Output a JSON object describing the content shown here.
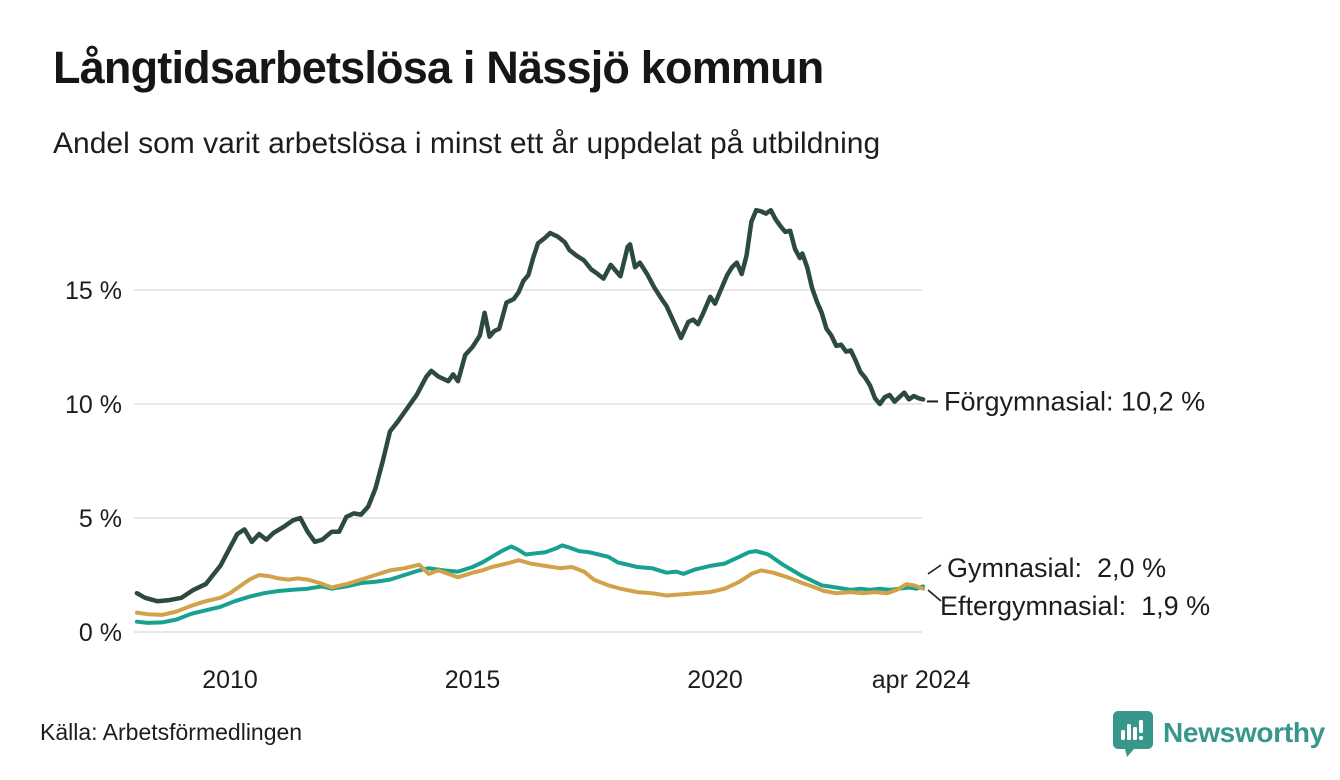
{
  "header": {
    "title": "Långtidsarbetslösa i Nässjö kommun",
    "subtitle": "Andel som varit arbetslösa i minst ett år uppdelat på utbildning"
  },
  "footer": {
    "source": "Källa: Arbetsförmedlingen",
    "brand": "Newsworthy",
    "brand_color": "#37978a"
  },
  "chart_data": {
    "type": "line",
    "title": "Långtidsarbetslösa i Nässjö kommun",
    "subtitle": "Andel som varit arbetslösa i minst ett år uppdelat på utbildning",
    "unit": "%",
    "grid": true,
    "gridline_color": "#e8e8e6",
    "text_color": "#1d1d1b",
    "legend_position": "end-of-line-labels",
    "x_axis": {
      "range": [
        2008.08,
        2024.29
      ],
      "ticks": [
        {
          "label": "2010",
          "year": 2010
        },
        {
          "label": "2015",
          "year": 2015
        },
        {
          "label": "2020",
          "year": 2020
        },
        {
          "label": "apr 2024",
          "year": 2024.25
        }
      ]
    },
    "y_axis": {
      "range": [
        0,
        19
      ],
      "ticks": [
        {
          "label": "0 %",
          "value": 0
        },
        {
          "label": "5 %",
          "value": 5
        },
        {
          "label": "10 %",
          "value": 10
        },
        {
          "label": "15 %",
          "value": 15
        }
      ]
    },
    "series": [
      {
        "name": "Förgymnasial",
        "end_label": "Förgymnasial: 10,2 %",
        "end_value": "10,2 %",
        "color": "#2c4a40",
        "stroke_width": 4.5,
        "points": [
          [
            2008.08,
            1.7
          ],
          [
            2008.25,
            1.5
          ],
          [
            2008.5,
            1.35
          ],
          [
            2008.75,
            1.4
          ],
          [
            2009.0,
            1.5
          ],
          [
            2009.25,
            1.85
          ],
          [
            2009.5,
            2.1
          ],
          [
            2009.65,
            2.5
          ],
          [
            2009.8,
            2.9
          ],
          [
            2010.0,
            3.7
          ],
          [
            2010.15,
            4.3
          ],
          [
            2010.3,
            4.5
          ],
          [
            2010.45,
            3.95
          ],
          [
            2010.6,
            4.3
          ],
          [
            2010.75,
            4.05
          ],
          [
            2010.9,
            4.35
          ],
          [
            2011.1,
            4.6
          ],
          [
            2011.3,
            4.9
          ],
          [
            2011.45,
            5.0
          ],
          [
            2011.6,
            4.4
          ],
          [
            2011.75,
            3.95
          ],
          [
            2011.9,
            4.05
          ],
          [
            2012.1,
            4.4
          ],
          [
            2012.25,
            4.4
          ],
          [
            2012.4,
            5.05
          ],
          [
            2012.55,
            5.2
          ],
          [
            2012.7,
            5.15
          ],
          [
            2012.85,
            5.5
          ],
          [
            2013.0,
            6.3
          ],
          [
            2013.15,
            7.5
          ],
          [
            2013.3,
            8.8
          ],
          [
            2013.45,
            9.2
          ],
          [
            2013.65,
            9.8
          ],
          [
            2013.85,
            10.4
          ],
          [
            2014.05,
            11.2
          ],
          [
            2014.15,
            11.45
          ],
          [
            2014.3,
            11.2
          ],
          [
            2014.5,
            11.0
          ],
          [
            2014.6,
            11.3
          ],
          [
            2014.7,
            11.0
          ],
          [
            2014.85,
            12.15
          ],
          [
            2015.0,
            12.5
          ],
          [
            2015.15,
            13.0
          ],
          [
            2015.25,
            14.0
          ],
          [
            2015.35,
            12.95
          ],
          [
            2015.45,
            13.2
          ],
          [
            2015.55,
            13.3
          ],
          [
            2015.7,
            14.45
          ],
          [
            2015.85,
            14.6
          ],
          [
            2015.95,
            14.9
          ],
          [
            2016.05,
            15.4
          ],
          [
            2016.15,
            15.65
          ],
          [
            2016.25,
            16.4
          ],
          [
            2016.35,
            17.05
          ],
          [
            2016.5,
            17.3
          ],
          [
            2016.6,
            17.5
          ],
          [
            2016.75,
            17.35
          ],
          [
            2016.9,
            17.1
          ],
          [
            2017.0,
            16.75
          ],
          [
            2017.15,
            16.5
          ],
          [
            2017.3,
            16.3
          ],
          [
            2017.45,
            15.9
          ],
          [
            2017.55,
            15.75
          ],
          [
            2017.7,
            15.5
          ],
          [
            2017.85,
            16.1
          ],
          [
            2017.95,
            15.85
          ],
          [
            2018.05,
            15.6
          ],
          [
            2018.2,
            16.9
          ],
          [
            2018.25,
            17.0
          ],
          [
            2018.35,
            16.0
          ],
          [
            2018.45,
            16.2
          ],
          [
            2018.6,
            15.7
          ],
          [
            2018.75,
            15.1
          ],
          [
            2018.9,
            14.6
          ],
          [
            2019.0,
            14.3
          ],
          [
            2019.15,
            13.6
          ],
          [
            2019.3,
            12.9
          ],
          [
            2019.45,
            13.6
          ],
          [
            2019.55,
            13.7
          ],
          [
            2019.65,
            13.5
          ],
          [
            2019.75,
            13.95
          ],
          [
            2019.9,
            14.7
          ],
          [
            2020.0,
            14.4
          ],
          [
            2020.1,
            14.9
          ],
          [
            2020.25,
            15.65
          ],
          [
            2020.35,
            16.0
          ],
          [
            2020.45,
            16.2
          ],
          [
            2020.55,
            15.7
          ],
          [
            2020.65,
            16.5
          ],
          [
            2020.75,
            18.0
          ],
          [
            2020.85,
            18.5
          ],
          [
            2020.95,
            18.45
          ],
          [
            2021.05,
            18.35
          ],
          [
            2021.15,
            18.5
          ],
          [
            2021.25,
            18.1
          ],
          [
            2021.35,
            17.8
          ],
          [
            2021.45,
            17.55
          ],
          [
            2021.55,
            17.6
          ],
          [
            2021.65,
            16.8
          ],
          [
            2021.75,
            16.4
          ],
          [
            2021.8,
            16.6
          ],
          [
            2021.9,
            16.0
          ],
          [
            2022.0,
            15.1
          ],
          [
            2022.1,
            14.5
          ],
          [
            2022.2,
            14.0
          ],
          [
            2022.3,
            13.3
          ],
          [
            2022.4,
            13.0
          ],
          [
            2022.5,
            12.55
          ],
          [
            2022.6,
            12.6
          ],
          [
            2022.7,
            12.3
          ],
          [
            2022.8,
            12.35
          ],
          [
            2022.9,
            11.9
          ],
          [
            2023.0,
            11.4
          ],
          [
            2023.1,
            11.15
          ],
          [
            2023.2,
            10.8
          ],
          [
            2023.3,
            10.25
          ],
          [
            2023.4,
            10.0
          ],
          [
            2023.5,
            10.3
          ],
          [
            2023.6,
            10.4
          ],
          [
            2023.7,
            10.1
          ],
          [
            2023.8,
            10.3
          ],
          [
            2023.9,
            10.5
          ],
          [
            2024.0,
            10.2
          ],
          [
            2024.1,
            10.35
          ],
          [
            2024.2,
            10.25
          ],
          [
            2024.29,
            10.2
          ]
        ]
      },
      {
        "name": "Gymnasial",
        "end_label": "Gymnasial:  2,0 %",
        "end_value": "2,0 %",
        "color": "#18a091",
        "stroke_width": 4,
        "points": [
          [
            2008.08,
            0.45
          ],
          [
            2008.3,
            0.4
          ],
          [
            2008.6,
            0.42
          ],
          [
            2008.9,
            0.55
          ],
          [
            2009.2,
            0.8
          ],
          [
            2009.5,
            0.95
          ],
          [
            2009.8,
            1.1
          ],
          [
            2010.1,
            1.35
          ],
          [
            2010.4,
            1.55
          ],
          [
            2010.7,
            1.7
          ],
          [
            2011.0,
            1.8
          ],
          [
            2011.3,
            1.85
          ],
          [
            2011.6,
            1.9
          ],
          [
            2011.9,
            2.0
          ],
          [
            2012.1,
            1.9
          ],
          [
            2012.4,
            2.0
          ],
          [
            2012.7,
            2.15
          ],
          [
            2013.0,
            2.2
          ],
          [
            2013.3,
            2.3
          ],
          [
            2013.6,
            2.5
          ],
          [
            2013.9,
            2.7
          ],
          [
            2014.1,
            2.8
          ],
          [
            2014.4,
            2.7
          ],
          [
            2014.7,
            2.65
          ],
          [
            2015.0,
            2.85
          ],
          [
            2015.2,
            3.05
          ],
          [
            2015.4,
            3.3
          ],
          [
            2015.6,
            3.55
          ],
          [
            2015.8,
            3.75
          ],
          [
            2015.95,
            3.6
          ],
          [
            2016.1,
            3.4
          ],
          [
            2016.3,
            3.45
          ],
          [
            2016.5,
            3.5
          ],
          [
            2016.7,
            3.65
          ],
          [
            2016.85,
            3.8
          ],
          [
            2017.0,
            3.7
          ],
          [
            2017.2,
            3.55
          ],
          [
            2017.4,
            3.5
          ],
          [
            2017.6,
            3.4
          ],
          [
            2017.8,
            3.3
          ],
          [
            2018.0,
            3.05
          ],
          [
            2018.2,
            2.95
          ],
          [
            2018.4,
            2.85
          ],
          [
            2018.7,
            2.8
          ],
          [
            2019.0,
            2.6
          ],
          [
            2019.2,
            2.65
          ],
          [
            2019.35,
            2.55
          ],
          [
            2019.6,
            2.75
          ],
          [
            2019.9,
            2.9
          ],
          [
            2020.2,
            3.0
          ],
          [
            2020.5,
            3.3
          ],
          [
            2020.7,
            3.5
          ],
          [
            2020.85,
            3.55
          ],
          [
            2021.1,
            3.4
          ],
          [
            2021.4,
            2.95
          ],
          [
            2021.6,
            2.7
          ],
          [
            2021.8,
            2.45
          ],
          [
            2022.0,
            2.25
          ],
          [
            2022.2,
            2.05
          ],
          [
            2022.5,
            1.95
          ],
          [
            2022.8,
            1.85
          ],
          [
            2023.0,
            1.9
          ],
          [
            2023.2,
            1.85
          ],
          [
            2023.4,
            1.9
          ],
          [
            2023.6,
            1.85
          ],
          [
            2023.8,
            1.9
          ],
          [
            2024.0,
            1.95
          ],
          [
            2024.15,
            1.9
          ],
          [
            2024.29,
            2.0
          ]
        ]
      },
      {
        "name": "Eftergymnasial",
        "end_label": "Eftergymnasial:  1,9 %",
        "end_value": "1,9 %",
        "color": "#d2a24a",
        "stroke_width": 4,
        "points": [
          [
            2008.08,
            0.85
          ],
          [
            2008.3,
            0.78
          ],
          [
            2008.6,
            0.75
          ],
          [
            2008.9,
            0.9
          ],
          [
            2009.2,
            1.15
          ],
          [
            2009.5,
            1.35
          ],
          [
            2009.8,
            1.5
          ],
          [
            2010.0,
            1.7
          ],
          [
            2010.2,
            2.0
          ],
          [
            2010.4,
            2.3
          ],
          [
            2010.6,
            2.5
          ],
          [
            2010.8,
            2.45
          ],
          [
            2011.0,
            2.35
          ],
          [
            2011.2,
            2.3
          ],
          [
            2011.4,
            2.35
          ],
          [
            2011.6,
            2.3
          ],
          [
            2011.85,
            2.15
          ],
          [
            2012.1,
            1.95
          ],
          [
            2012.4,
            2.1
          ],
          [
            2012.7,
            2.3
          ],
          [
            2013.0,
            2.5
          ],
          [
            2013.3,
            2.7
          ],
          [
            2013.6,
            2.8
          ],
          [
            2013.9,
            2.95
          ],
          [
            2014.1,
            2.55
          ],
          [
            2014.3,
            2.7
          ],
          [
            2014.5,
            2.55
          ],
          [
            2014.7,
            2.4
          ],
          [
            2015.0,
            2.6
          ],
          [
            2015.2,
            2.7
          ],
          [
            2015.4,
            2.85
          ],
          [
            2015.7,
            3.0
          ],
          [
            2015.95,
            3.15
          ],
          [
            2016.2,
            3.0
          ],
          [
            2016.5,
            2.9
          ],
          [
            2016.8,
            2.8
          ],
          [
            2017.05,
            2.85
          ],
          [
            2017.3,
            2.65
          ],
          [
            2017.5,
            2.3
          ],
          [
            2017.8,
            2.05
          ],
          [
            2018.05,
            1.9
          ],
          [
            2018.4,
            1.75
          ],
          [
            2018.7,
            1.7
          ],
          [
            2019.0,
            1.6
          ],
          [
            2019.3,
            1.65
          ],
          [
            2019.6,
            1.7
          ],
          [
            2019.9,
            1.75
          ],
          [
            2020.2,
            1.9
          ],
          [
            2020.5,
            2.2
          ],
          [
            2020.75,
            2.55
          ],
          [
            2020.95,
            2.7
          ],
          [
            2021.2,
            2.6
          ],
          [
            2021.5,
            2.4
          ],
          [
            2021.8,
            2.15
          ],
          [
            2022.0,
            2.0
          ],
          [
            2022.25,
            1.8
          ],
          [
            2022.5,
            1.7
          ],
          [
            2022.8,
            1.75
          ],
          [
            2023.05,
            1.7
          ],
          [
            2023.3,
            1.75
          ],
          [
            2023.55,
            1.7
          ],
          [
            2023.75,
            1.85
          ],
          [
            2023.95,
            2.1
          ],
          [
            2024.1,
            2.05
          ],
          [
            2024.29,
            1.9
          ]
        ]
      }
    ]
  }
}
